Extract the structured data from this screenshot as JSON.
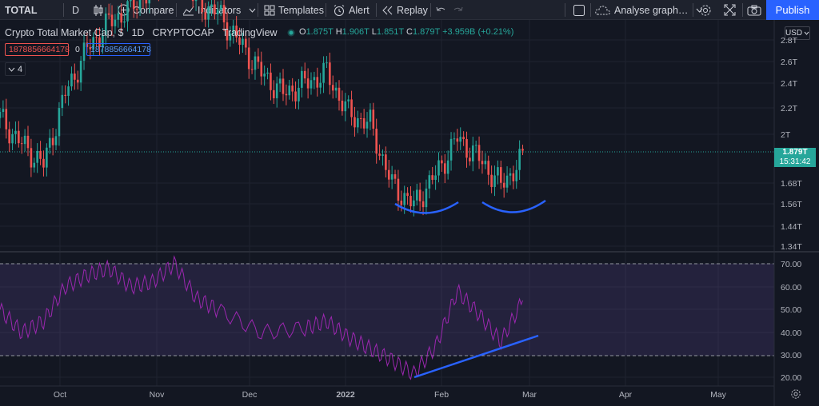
{
  "toolbar": {
    "symbol": "TOTAL",
    "interval": "D",
    "compare": "Compare",
    "indicators": "Indicators",
    "templates": "Templates",
    "alert": "Alert",
    "replay": "Replay",
    "analyse": "Analyse graph…",
    "publish": "Publish"
  },
  "legend": {
    "title": "Crypto Total Market Cap, $",
    "interval": "1D",
    "exchange": "CRYPTOCAP",
    "source": "TradingView",
    "o_label": "O",
    "o": "1.875T",
    "h_label": "H",
    "h": "1.906T",
    "l_label": "L",
    "l": "1.851T",
    "c_label": "C",
    "c": "1.879T",
    "change": "+3.959B (+0.21%)",
    "bid": "1878856664178",
    "spread": "0",
    "ask": "1878856664178",
    "collapse_count": "4"
  },
  "price_axis": {
    "currency": "USD",
    "ticks": [
      "2.8T",
      "2.6T",
      "2.4T",
      "2.2T",
      "2T",
      "1.68T",
      "1.56T",
      "1.44T",
      "1.34T"
    ],
    "last_price": "1.879T",
    "countdown": "15:31:42"
  },
  "rsi_axis": {
    "ticks": [
      "70.00",
      "60.00",
      "50.00",
      "40.00",
      "30.00",
      "20.00"
    ]
  },
  "time_axis": {
    "ticks": [
      "Oct",
      "Nov",
      "Dec",
      "2022",
      "Feb",
      "Mar",
      "Apr",
      "May"
    ]
  },
  "colors": {
    "up": "#26a69a",
    "down": "#ef5350",
    "rsi": "#9c27b0",
    "drawing": "#2962ff",
    "accent": "#2962ff",
    "background": "#131722"
  },
  "chart_data": [
    {
      "type": "candlestick",
      "title": "Crypto Total Market Cap, $",
      "x_range": [
        "2021-09-13",
        "2022-05-20"
      ],
      "y_unit": "USD (T)",
      "ylim": [
        1.3,
        2.85
      ],
      "log_scale": true,
      "weekly_close": [
        [
          "2021-09-13",
          2.08
        ],
        [
          "2021-09-20",
          1.95
        ],
        [
          "2021-09-27",
          1.85
        ],
        [
          "2021-10-04",
          2.2
        ],
        [
          "2021-10-11",
          2.42
        ],
        [
          "2021-10-18",
          2.55
        ],
        [
          "2021-10-25",
          2.62
        ],
        [
          "2021-11-01",
          2.72
        ],
        [
          "2021-11-08",
          2.85
        ],
        [
          "2021-11-15",
          2.65
        ],
        [
          "2021-11-22",
          2.6
        ],
        [
          "2021-11-29",
          2.45
        ],
        [
          "2021-12-06",
          2.3
        ],
        [
          "2021-12-13",
          2.2
        ],
        [
          "2021-12-20",
          2.25
        ],
        [
          "2021-12-27",
          2.3
        ],
        [
          "2022-01-03",
          2.1
        ],
        [
          "2022-01-10",
          2.05
        ],
        [
          "2022-01-17",
          1.75
        ],
        [
          "2022-01-24",
          1.65
        ],
        [
          "2022-01-31",
          1.8
        ],
        [
          "2022-02-07",
          1.98
        ],
        [
          "2022-02-14",
          1.88
        ],
        [
          "2022-02-21",
          1.75
        ],
        [
          "2022-02-28",
          1.879
        ]
      ]
    },
    {
      "type": "line",
      "title": "RSI",
      "ylim": [
        20,
        70
      ],
      "bands": [
        30,
        70
      ],
      "series": [
        {
          "values": [
            [
              "2021-09-13",
              50
            ],
            [
              "2021-09-20",
              40
            ],
            [
              "2021-09-27",
              45
            ],
            [
              "2021-10-04",
              60
            ],
            [
              "2021-10-11",
              65
            ],
            [
              "2021-10-18",
              68
            ],
            [
              "2021-10-25",
              60
            ],
            [
              "2021-11-01",
              62
            ],
            [
              "2021-11-08",
              70
            ],
            [
              "2021-11-15",
              55
            ],
            [
              "2021-11-22",
              50
            ],
            [
              "2021-12-06",
              40
            ],
            [
              "2021-12-20",
              42
            ],
            [
              "2021-12-27",
              45
            ],
            [
              "2022-01-03",
              38
            ],
            [
              "2022-01-10",
              33
            ],
            [
              "2022-01-17",
              28
            ],
            [
              "2022-01-24",
              22
            ],
            [
              "2022-01-31",
              34
            ],
            [
              "2022-02-07",
              58
            ],
            [
              "2022-02-14",
              48
            ],
            [
              "2022-02-21",
              36
            ],
            [
              "2022-02-28",
              54
            ]
          ]
        }
      ]
    }
  ]
}
